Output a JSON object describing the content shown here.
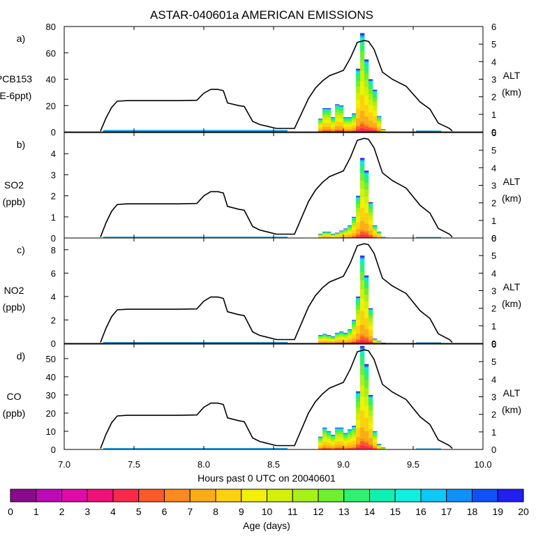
{
  "chart_data": {
    "type": "bar",
    "title": "ASTAR-040601a AMERICAN EMISSIONS",
    "xlabel": "Hours past 0 UTC on 20040601",
    "xlim": [
      7.0,
      10.0
    ],
    "x_ticks": [
      "7.0",
      "7.5",
      "8.0",
      "8.5",
      "9.0",
      "9.5",
      "10.0"
    ],
    "right_axis": {
      "label_line1": "ALT",
      "label_line2": "(km)",
      "ylim": [
        0,
        6
      ]
    },
    "altitude_profile": {
      "x": [
        7.26,
        7.3,
        7.34,
        7.38,
        7.45,
        7.6,
        7.8,
        7.95,
        8.0,
        8.05,
        8.1,
        8.14,
        8.17,
        8.25,
        8.29,
        8.35,
        8.4,
        8.52,
        8.65,
        8.75,
        8.8,
        8.85,
        8.9,
        8.95,
        9.0,
        9.05,
        9.1,
        9.15,
        9.18,
        9.22,
        9.28,
        9.35,
        9.45,
        9.55,
        9.62,
        9.68,
        9.72,
        9.76,
        9.78
      ],
      "km": [
        0.05,
        0.8,
        1.4,
        1.75,
        1.78,
        1.78,
        1.78,
        1.8,
        2.2,
        2.42,
        2.42,
        2.35,
        1.65,
        1.5,
        1.45,
        0.6,
        0.42,
        0.2,
        0.2,
        1.9,
        2.5,
        2.9,
        3.2,
        3.35,
        3.5,
        4.2,
        5.1,
        5.2,
        5.15,
        4.7,
        3.4,
        3.0,
        2.6,
        1.7,
        1.3,
        0.5,
        0.35,
        0.2,
        0.05
      ]
    },
    "bar_x": [
      8.82,
      8.85,
      8.88,
      8.91,
      8.94,
      8.97,
      9.0,
      9.03,
      9.06,
      9.09,
      9.12,
      9.15,
      9.18,
      9.21,
      9.24,
      9.27
    ],
    "panels": [
      {
        "letter": "a)",
        "label_line1": "PCB153",
        "label_line2": "(E-6ppt)",
        "ylim": [
          0,
          80
        ],
        "ticks": [
          "0",
          "20",
          "40",
          "60",
          "80"
        ],
        "background": 1.5,
        "background_range": [
          7.28,
          8.6
        ],
        "values": [
          10,
          18,
          18,
          11,
          21,
          20,
          11,
          11,
          14,
          48,
          75,
          55,
          40,
          32,
          12,
          2
        ]
      },
      {
        "letter": "b)",
        "label_line1": "SO2",
        "label_line2": "(ppb)",
        "ylim": [
          0,
          5
        ],
        "ticks": [
          "0",
          "1",
          "2",
          "3",
          "4"
        ],
        "background": 0.04,
        "background_range": [
          7.28,
          8.6
        ],
        "values": [
          0.2,
          0.3,
          0.3,
          0.2,
          0.25,
          0.35,
          0.45,
          0.6,
          1.0,
          2.0,
          3.8,
          3.2,
          1.7,
          0.6,
          0.3,
          0.05
        ]
      },
      {
        "letter": "c)",
        "label_line1": "NO2",
        "label_line2": "(ppb)",
        "ylim": [
          0,
          9
        ],
        "ticks": [
          "0",
          "2",
          "4",
          "6",
          "8"
        ],
        "background": 0.1,
        "background_range": [
          7.28,
          8.6
        ],
        "values": [
          0.7,
          0.8,
          0.7,
          0.6,
          0.9,
          1.0,
          0.9,
          1.2,
          2.0,
          4.0,
          7.5,
          5.8,
          3.0,
          0.4,
          0.2,
          0.05
        ]
      },
      {
        "letter": "d)",
        "label_line1": "CO",
        "label_line2": "(ppb)",
        "ylim": [
          0,
          58
        ],
        "ticks": [
          "0",
          "10",
          "20",
          "30",
          "40",
          "50"
        ],
        "background": 0.8,
        "background_range": [
          7.28,
          8.6
        ],
        "values": [
          7,
          12,
          10,
          8,
          12,
          12,
          9,
          11,
          13,
          32,
          57,
          47,
          30,
          10,
          3,
          1
        ]
      }
    ],
    "colorbar": {
      "label": "Age (days)",
      "ticks": [
        "0",
        "1",
        "2",
        "3",
        "4",
        "5",
        "6",
        "7",
        "8",
        "9",
        "10",
        "11",
        "12",
        "13",
        "14",
        "15",
        "16",
        "17",
        "18",
        "19",
        "20"
      ],
      "colors": [
        "#8b0a8b",
        "#bd0ab6",
        "#e00aa6",
        "#f0107a",
        "#f82a4a",
        "#fa5a2a",
        "#fb8a20",
        "#fcac18",
        "#fdd010",
        "#f2ef08",
        "#d2f008",
        "#a8f018",
        "#6ef030",
        "#30f070",
        "#10f0b0",
        "#10f0e0",
        "#10c8f8",
        "#1090f8",
        "#1050f8",
        "#2020f0",
        "#6a20e8"
      ]
    }
  }
}
